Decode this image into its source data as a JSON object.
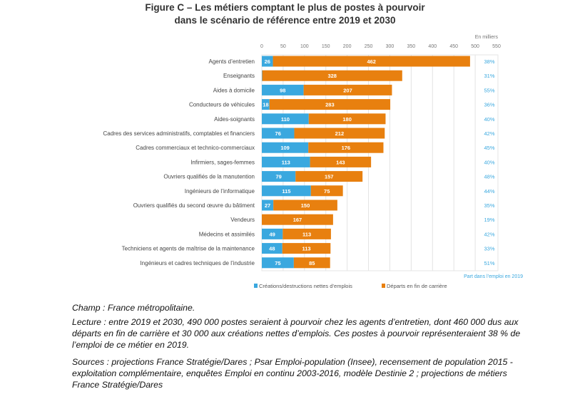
{
  "title_line1": "Figure C – Les métiers comptant le plus de postes à pourvoir",
  "title_line2": "dans le scénario de référence entre 2019 et 2030",
  "chart_data": {
    "type": "bar",
    "orientation": "horizontal",
    "stacked": true,
    "unit_label": "En milliers",
    "xlim": [
      0,
      550
    ],
    "xticks": [
      0,
      50,
      100,
      150,
      200,
      250,
      300,
      350,
      400,
      450,
      500,
      550
    ],
    "grid": true,
    "legend_position": "bottom",
    "categories": [
      "Agents d’entretien",
      "Enseignants",
      "Aides à domicile",
      "Conducteurs de véhicules",
      "Aides-soignants",
      "Cadres des services administratifs, comptables et financiers",
      "Cadres commerciaux et technico-commerciaux",
      "Infirmiers, sages-femmes",
      "Ouvriers qualifiés de la manutention",
      "Ingénieurs de l’informatique",
      "Ouvriers qualifiés du second œuvre du bâtiment",
      "Vendeurs",
      "Médecins et assimilés",
      "Techniciens et agents de maîtrise de la maintenance",
      "Ingénieurs et cadres techniques de l’industrie"
    ],
    "series": [
      {
        "name": "Créations/destructions nettes d’emplois",
        "color": "#3aa8df",
        "values": [
          26,
          1,
          98,
          18,
          110,
          76,
          109,
          113,
          79,
          115,
          27,
          0,
          49,
          48,
          75
        ]
      },
      {
        "name": "Départs en fin de carrière",
        "color": "#e8800f",
        "values": [
          462,
          328,
          207,
          283,
          180,
          212,
          176,
          143,
          157,
          75,
          150,
          167,
          113,
          113,
          85
        ]
      }
    ],
    "share_label": "Part dans l’emploi en 2019",
    "share_color": "#3aa8df",
    "share_values": [
      "38%",
      "31%",
      "55%",
      "36%",
      "40%",
      "42%",
      "45%",
      "40%",
      "48%",
      "44%",
      "35%",
      "19%",
      "42%",
      "33%",
      "51%"
    ]
  },
  "notes": {
    "champ": "Champ : France métropolitaine.",
    "lecture": "Lecture : entre 2019 et 2030, 490 000 postes seraient à pourvoir chez les agents d’entretien, dont 460 000 dus aux départs en fin de carrière et 30 000 aux créations nettes d’emplois. Ces postes à pourvoir représenteraient 38 % de l’emploi de ce métier en 2019.",
    "sources": "Sources : projections France Stratégie/Dares ; Psar Emploi-population (Insee), recensement de population 2015 - exploitation complémentaire, enquêtes Emploi en continu 2003-2016, modèle Destinie 2 ; projections de métiers France Stratégie/Dares"
  }
}
